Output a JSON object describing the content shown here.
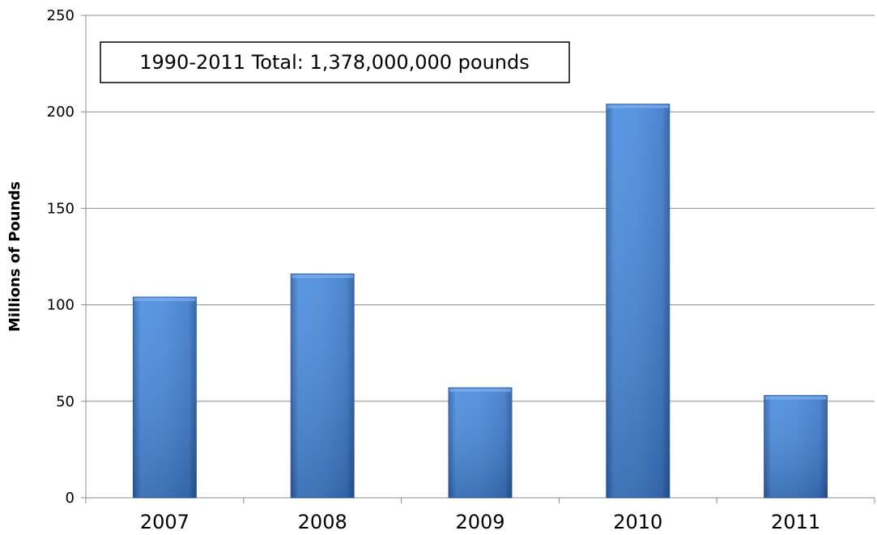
{
  "chart_data": {
    "type": "bar",
    "categories": [
      "2007",
      "2008",
      "2009",
      "2010",
      "2011"
    ],
    "values": [
      104,
      116,
      57,
      204,
      53
    ],
    "title": "",
    "xlabel": "",
    "ylabel": "Millions of Pounds",
    "ylim": [
      0,
      250
    ],
    "yticks": [
      0,
      50,
      100,
      150,
      200,
      250
    ],
    "grid": true,
    "annotation": "1990-2011 Total: 1,378,000,000 pounds",
    "bar_color": "#3f7fd0",
    "bar_color_light": "#5c9ae6",
    "bar_color_dark": "#2a5fa8"
  }
}
